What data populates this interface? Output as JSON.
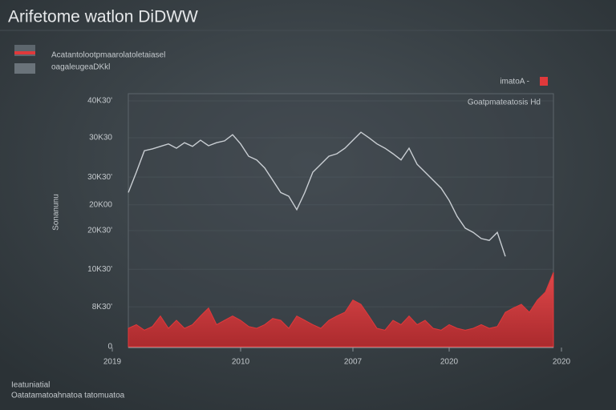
{
  "chart_data": {
    "type": "line",
    "title": "Arifetome watlon DiDWW",
    "legend_items": [
      "Acatantolootpmaarolatoletaiasel",
      "oagaleugeaDKkl"
    ],
    "corner_label": "imatoA -",
    "annotation": "Goatpmateatosis Hd",
    "ylabel": "Sonanunu",
    "footer": [
      "Ieatuniatial",
      "Oatatamatoahnatoa tatomuatoa"
    ],
    "x": [
      0,
      1,
      2,
      3,
      4,
      5,
      6,
      7,
      8,
      9,
      10,
      11,
      12,
      13,
      14,
      15,
      16,
      17,
      18,
      19,
      20,
      21,
      22,
      23,
      24,
      25,
      26,
      27,
      28,
      29,
      30,
      31,
      32,
      33,
      34,
      35,
      36,
      37,
      38,
      39,
      40,
      41,
      42,
      43,
      44,
      45,
      46,
      47,
      48,
      49,
      50,
      51,
      52,
      53
    ],
    "series": [
      {
        "name": "oagaleugeaDKkl",
        "color": "#c9ced3",
        "fill": false,
        "values": [
          25100,
          28400,
          31900,
          32200,
          32600,
          33000,
          32300,
          33200,
          32600,
          33600,
          32700,
          33200,
          33500,
          34500,
          33000,
          31000,
          30400,
          29100,
          27100,
          25100,
          24500,
          22300,
          25100,
          28400,
          29700,
          31000,
          31400,
          32300,
          33600,
          34900,
          34000,
          33000,
          32300,
          31400,
          30400,
          32300,
          29700,
          28400,
          27100,
          25800,
          23800,
          21200,
          19300,
          18600,
          17600,
          17300,
          18600,
          14700,
          null,
          null,
          null,
          null,
          null,
          null
        ]
      },
      {
        "name": "Acatantolootpmaarolatoletaiasel",
        "color": "#e0393b",
        "fill": true,
        "values": [
          3000,
          3600,
          2700,
          3300,
          5000,
          3000,
          4300,
          3000,
          3600,
          5000,
          6300,
          3600,
          4300,
          5000,
          4300,
          3300,
          3000,
          3600,
          4600,
          4300,
          3000,
          5000,
          4300,
          3600,
          3000,
          4300,
          5000,
          5600,
          7600,
          6900,
          5000,
          3000,
          2700,
          4300,
          3600,
          5000,
          3600,
          4300,
          3000,
          2700,
          3600,
          3000,
          2700,
          3000,
          3600,
          3000,
          3300,
          5600,
          6300,
          6900,
          5600,
          7600,
          8900,
          12100
        ]
      }
    ],
    "xlim": [
      -2,
      54
    ],
    "xticks": [
      {
        "value": -2,
        "label": "2019"
      },
      {
        "value": 14,
        "label": "2010"
      },
      {
        "value": 28,
        "label": "2007"
      },
      {
        "value": 40,
        "label": "2020"
      },
      {
        "value": 54,
        "label": "2020"
      }
    ],
    "ylim": [
      0,
      40000
    ],
    "yticks": [
      0,
      {
        "value": 6500,
        "label": "8K30'"
      },
      {
        "value": 12600,
        "label": "10K30'"
      },
      {
        "value": 18900,
        "label": "20K30'"
      },
      {
        "value": 23100,
        "label": "20K00"
      },
      {
        "value": 27600,
        "label": "30K30'"
      },
      {
        "value": 34000,
        "label": "30K30"
      },
      {
        "value": 40000,
        "label": "40K30'"
      }
    ],
    "grid": true
  }
}
